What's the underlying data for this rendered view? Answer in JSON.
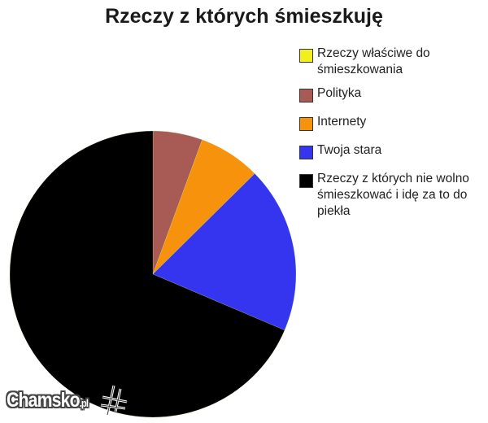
{
  "chart_data": {
    "type": "pie",
    "title": "Rzeczy z których śmieszkuję",
    "start_angle": "top, clockwise",
    "legend_position": "right",
    "slices": [
      {
        "label": "Rzeczy właściwe do śmieszkowania",
        "value": 0,
        "color": "#f2ef1c"
      },
      {
        "label": "Polityka",
        "value": 5.6,
        "color": "#a85a55"
      },
      {
        "label": "Internety",
        "value": 7.0,
        "color": "#f7920c"
      },
      {
        "label": "Twoja stara",
        "value": 18.8,
        "color": "#3535f0"
      },
      {
        "label": "Rzeczy z których nie wolno śmieszkować i idę za to do piekła",
        "value": 68.6,
        "color": "#000000"
      }
    ]
  },
  "watermark": {
    "brand": "Chamsko",
    "suffix": ".pl"
  }
}
